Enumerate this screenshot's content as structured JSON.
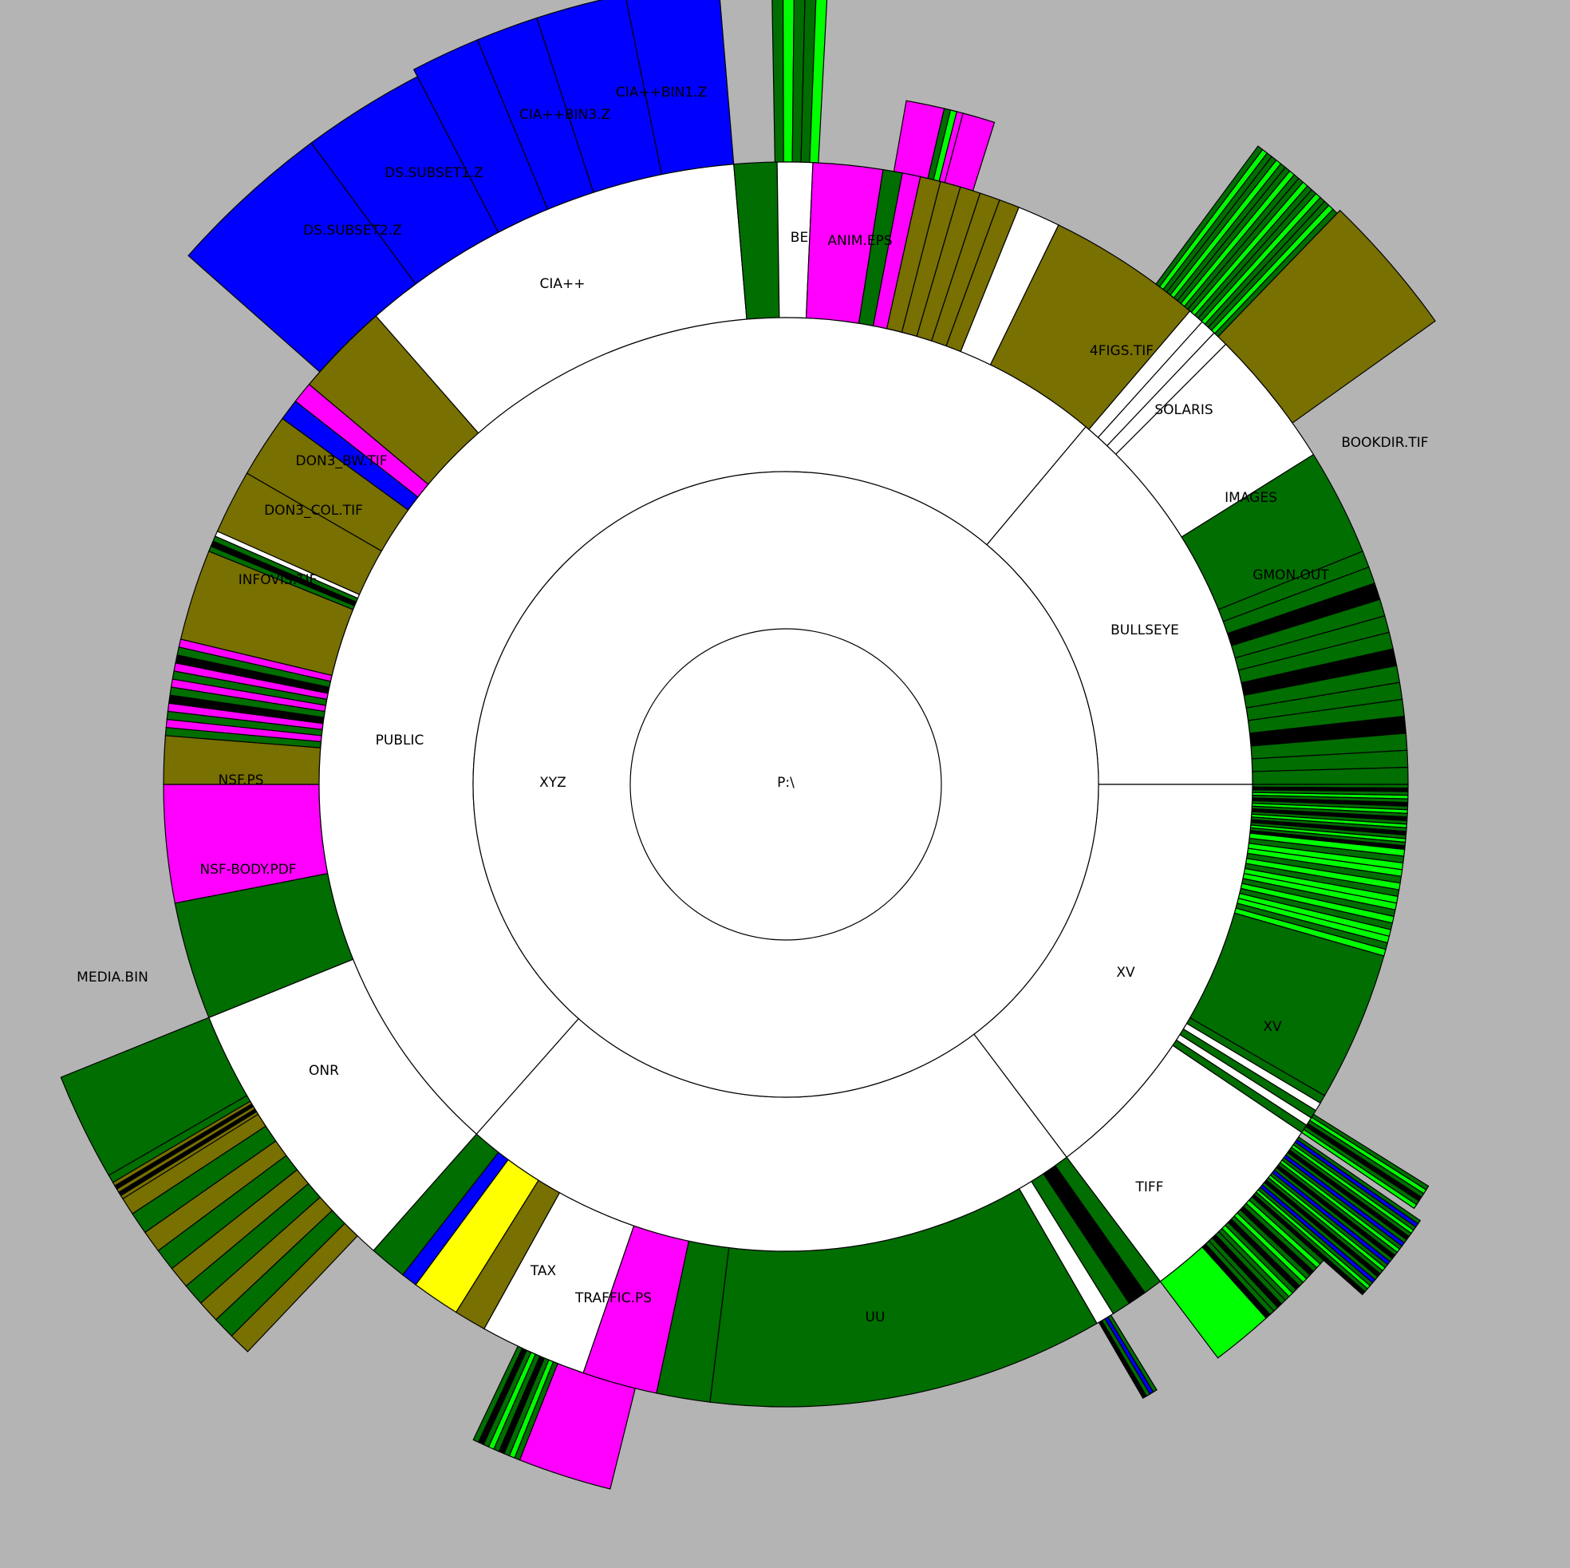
{
  "colors": {
    "background": "#b4b4b4",
    "directory": "#ffffff",
    "green": "#006e00",
    "bright_green": "#00ff00",
    "olive": "#787000",
    "magenta": "#ff00ff",
    "blue": "#0000ff",
    "yellow": "#ffff00",
    "black": "#000000"
  },
  "labels": {
    "root": "P:\\",
    "xyz": "XYZ",
    "public": "PUBLIC",
    "bullseye": "BULLSEYE",
    "xv": "XV",
    "cia": "CIA++",
    "onr": "ONR",
    "tax": "TAX",
    "be": "BE",
    "solaris": "SOLARIS",
    "images": "IMAGES",
    "tiff": "TIFF",
    "ds_subset2": "DS.SUBSET2.Z",
    "ds_subset1": "DS.SUBSET1.Z",
    "cia_bin3": "CIA++BIN3.Z",
    "cia_bin1": "CIA++BIN1.Z",
    "anim_eps": "ANIM.EPS",
    "figs4": "4FIGS.TIF",
    "bookdir": "BOOKDIR.TIF",
    "gmon": "GMON.OUT",
    "xv_file": "XV",
    "uu": "UU",
    "traffic": "TRAFFIC.PS",
    "media": "MEDIA.BIN",
    "nsf_body": "NSF-BODY.PDF",
    "nsf_ps": "NSF.PS",
    "infovis": "INFOVIS.TIF",
    "don3_col": "DON3_COL.TIF",
    "don3_bw": "DON3_BW.TIF"
  }
}
